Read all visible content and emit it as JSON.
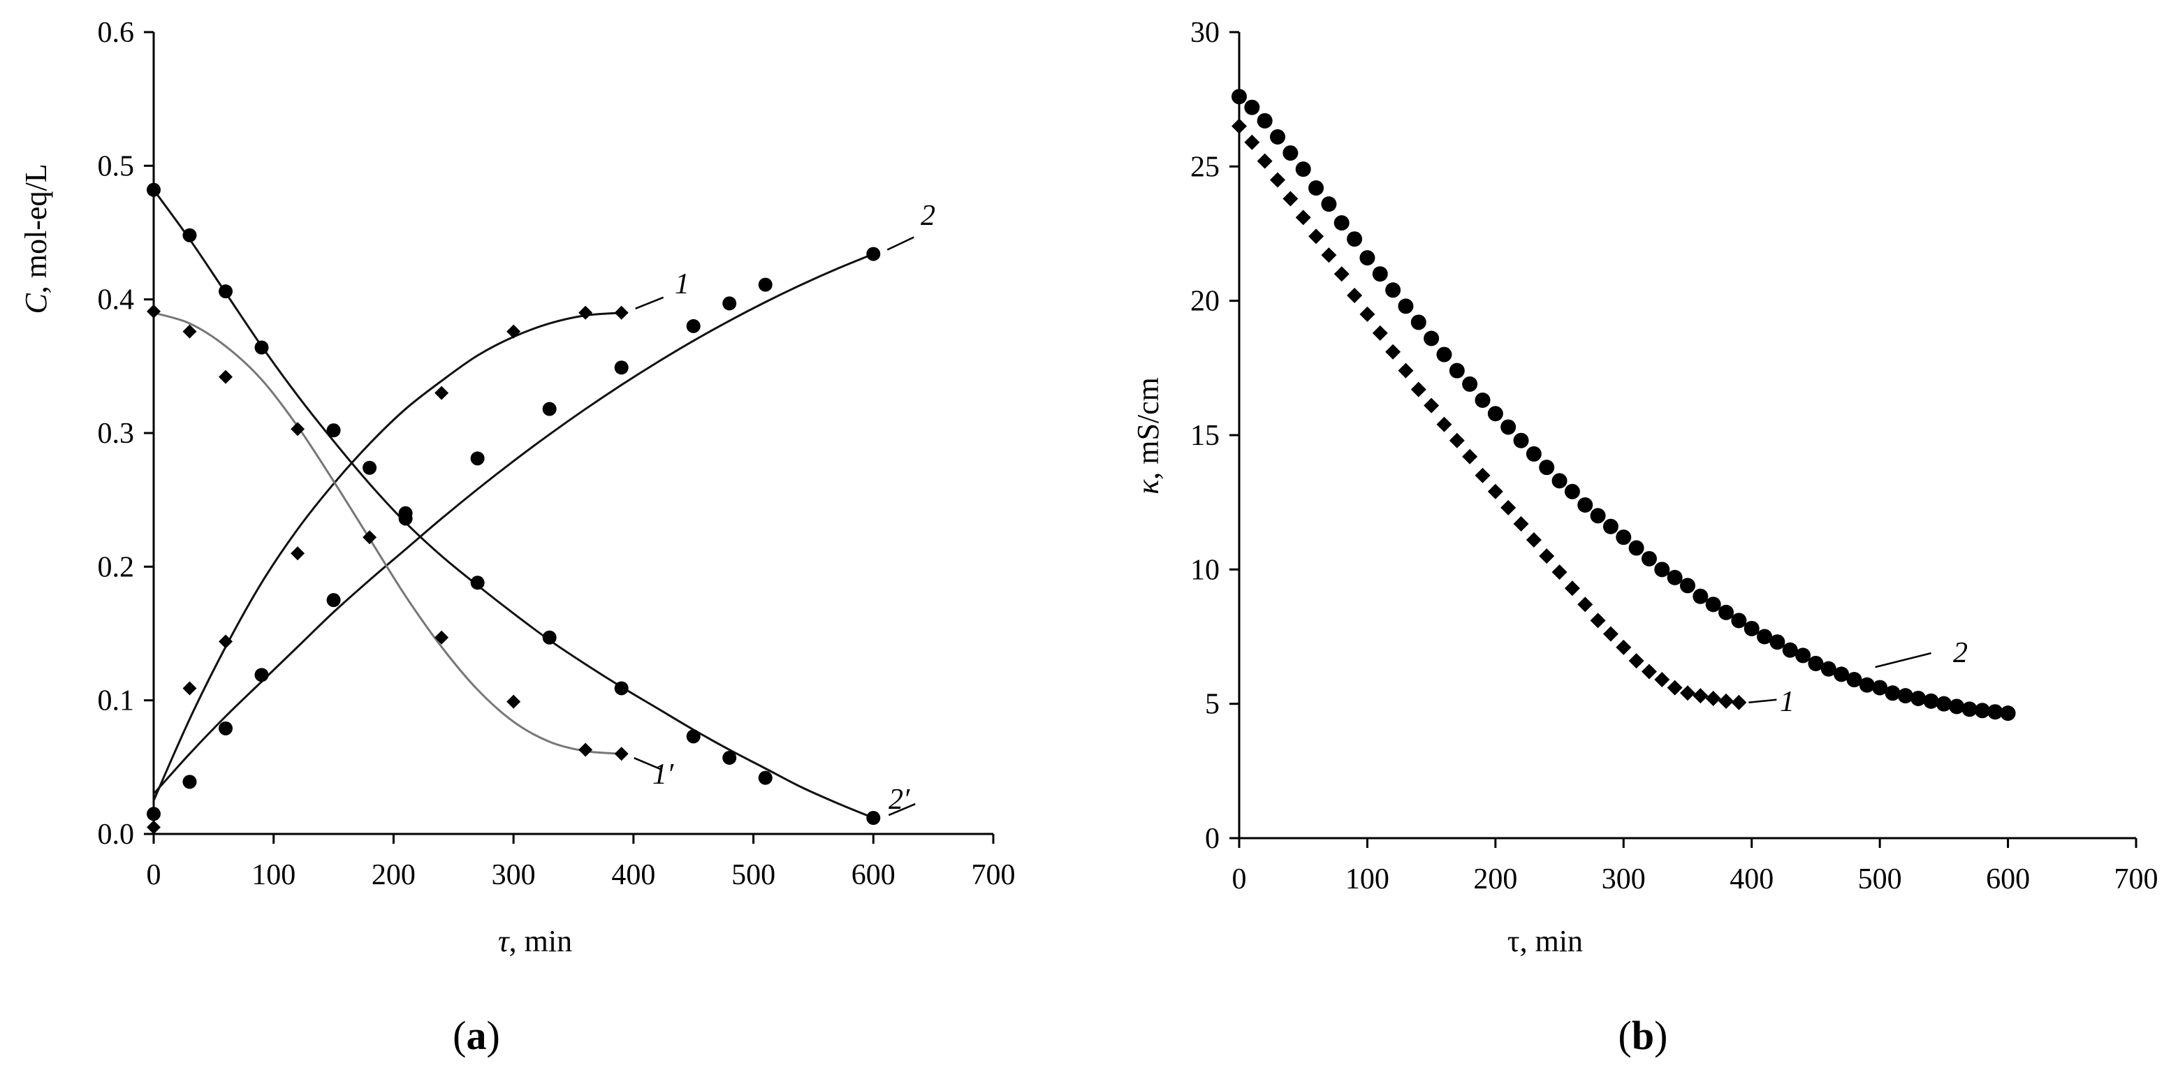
{
  "figure_labels": {
    "a_open": "(",
    "a_letter": "a",
    "a_close": ")",
    "b_open": "(",
    "b_letter": "b",
    "b_close": ")"
  },
  "chart_data": [
    {
      "id": "a",
      "type": "scatter",
      "title": "",
      "xlabel": "τ, min",
      "ylabel": "C, mol-eq/L",
      "xlim": [
        0,
        700
      ],
      "ylim": [
        0,
        0.6
      ],
      "xticks": [
        0,
        100,
        200,
        300,
        400,
        500,
        600,
        700
      ],
      "yticks": [
        0.0,
        0.1,
        0.2,
        0.3,
        0.4,
        0.5,
        0.6
      ],
      "ytick_labels": [
        "0.0",
        "0.1",
        "0.2",
        "0.3",
        "0.4",
        "0.5",
        "0.6"
      ],
      "grid": false,
      "series": [
        {
          "name": "1",
          "label": "1",
          "marker": "diamond",
          "line_color": "#111111",
          "x": [
            0,
            30,
            60,
            120,
            240,
            300,
            360,
            390
          ],
          "y": [
            0.005,
            0.109,
            0.144,
            0.21,
            0.33,
            0.376,
            0.39,
            0.39
          ],
          "fit_x": [
            0,
            30,
            60,
            90,
            120,
            150,
            180,
            210,
            240,
            270,
            300,
            330,
            360,
            390
          ],
          "fit_y": [
            0.025,
            0.086,
            0.14,
            0.188,
            0.228,
            0.262,
            0.292,
            0.318,
            0.339,
            0.358,
            0.372,
            0.382,
            0.388,
            0.39
          ]
        },
        {
          "name": "2",
          "label": "2",
          "marker": "circle",
          "line_color": "#111111",
          "x": [
            0,
            30,
            60,
            90,
            150,
            210,
            270,
            330,
            390,
            450,
            480,
            510,
            600
          ],
          "y": [
            0.015,
            0.039,
            0.079,
            0.119,
            0.175,
            0.236,
            0.281,
            0.318,
            0.349,
            0.38,
            0.397,
            0.411,
            0.434
          ],
          "fit_x": [
            0,
            30,
            60,
            90,
            120,
            150,
            180,
            210,
            240,
            270,
            300,
            330,
            360,
            390,
            420,
            450,
            480,
            510,
            540,
            570,
            600
          ],
          "fit_y": [
            0.03,
            0.06,
            0.088,
            0.114,
            0.14,
            0.166,
            0.19,
            0.213,
            0.236,
            0.258,
            0.279,
            0.299,
            0.318,
            0.336,
            0.353,
            0.369,
            0.384,
            0.398,
            0.411,
            0.423,
            0.434
          ]
        },
        {
          "name": "1'",
          "label": "1′",
          "marker": "diamond",
          "line_color": "#777777",
          "x": [
            0,
            30,
            60,
            120,
            180,
            240,
            300,
            360,
            390
          ],
          "y": [
            0.391,
            0.376,
            0.342,
            0.303,
            0.222,
            0.147,
            0.099,
            0.063,
            0.06
          ],
          "fit_x": [
            0,
            30,
            60,
            90,
            120,
            150,
            180,
            210,
            240,
            270,
            300,
            330,
            360,
            390
          ],
          "fit_y": [
            0.39,
            0.382,
            0.365,
            0.34,
            0.305,
            0.264,
            0.221,
            0.178,
            0.14,
            0.108,
            0.084,
            0.069,
            0.062,
            0.06
          ]
        },
        {
          "name": "2'",
          "label": "2′",
          "marker": "circle",
          "line_color": "#111111",
          "x": [
            0,
            30,
            60,
            90,
            150,
            180,
            210,
            270,
            330,
            390,
            450,
            480,
            510,
            600
          ],
          "y": [
            0.482,
            0.448,
            0.406,
            0.364,
            0.302,
            0.274,
            0.24,
            0.188,
            0.147,
            0.109,
            0.073,
            0.057,
            0.042,
            0.012
          ],
          "fit_x": [
            0,
            30,
            60,
            90,
            120,
            150,
            180,
            210,
            240,
            270,
            300,
            330,
            360,
            390,
            420,
            450,
            480,
            510,
            540,
            570,
            600
          ],
          "fit_y": [
            0.482,
            0.445,
            0.405,
            0.365,
            0.328,
            0.294,
            0.262,
            0.233,
            0.208,
            0.186,
            0.165,
            0.145,
            0.127,
            0.11,
            0.094,
            0.078,
            0.063,
            0.049,
            0.035,
            0.023,
            0.012
          ]
        }
      ]
    },
    {
      "id": "b",
      "type": "scatter",
      "title": "",
      "xlabel": "τ, min",
      "ylabel": "κ, mS/cm",
      "xlim": [
        0,
        700
      ],
      "ylim": [
        0,
        30
      ],
      "xticks": [
        0,
        100,
        200,
        300,
        400,
        500,
        600,
        700
      ],
      "yticks": [
        0,
        5,
        10,
        15,
        20,
        25,
        30
      ],
      "ytick_labels": [
        "0",
        "5",
        "10",
        "15",
        "20",
        "25",
        "30"
      ],
      "grid": false,
      "series": [
        {
          "name": "1",
          "label": "1",
          "marker": "diamond",
          "x": [
            0,
            10,
            20,
            30,
            40,
            50,
            60,
            70,
            80,
            90,
            100,
            110,
            120,
            130,
            140,
            150,
            160,
            170,
            180,
            190,
            200,
            210,
            220,
            230,
            240,
            250,
            260,
            270,
            280,
            290,
            300,
            310,
            320,
            330,
            340,
            350,
            360,
            370,
            380,
            390
          ],
          "y": [
            26.5,
            25.9,
            25.2,
            24.5,
            23.8,
            23.1,
            22.4,
            21.7,
            21.0,
            20.2,
            19.5,
            18.8,
            18.1,
            17.4,
            16.7,
            16.1,
            15.4,
            14.8,
            14.2,
            13.5,
            12.9,
            12.3,
            11.7,
            11.1,
            10.5,
            9.9,
            9.3,
            8.7,
            8.1,
            7.6,
            7.1,
            6.6,
            6.2,
            5.9,
            5.6,
            5.4,
            5.3,
            5.2,
            5.1,
            5.05
          ]
        },
        {
          "name": "2",
          "label": "2",
          "marker": "circle",
          "x": [
            0,
            10,
            20,
            30,
            40,
            50,
            60,
            70,
            80,
            90,
            100,
            110,
            120,
            130,
            140,
            150,
            160,
            170,
            180,
            190,
            200,
            210,
            220,
            230,
            240,
            250,
            260,
            270,
            280,
            290,
            300,
            310,
            320,
            330,
            340,
            350,
            360,
            370,
            380,
            390,
            400,
            410,
            420,
            430,
            440,
            450,
            460,
            470,
            480,
            490,
            500,
            510,
            520,
            530,
            540,
            550,
            560,
            570,
            580,
            590,
            600
          ],
          "y": [
            27.6,
            27.2,
            26.7,
            26.1,
            25.5,
            24.9,
            24.2,
            23.6,
            22.9,
            22.3,
            21.6,
            21.0,
            20.4,
            19.8,
            19.2,
            18.6,
            18.0,
            17.4,
            16.9,
            16.3,
            15.8,
            15.3,
            14.8,
            14.3,
            13.8,
            13.3,
            12.9,
            12.4,
            12.0,
            11.6,
            11.2,
            10.8,
            10.4,
            10.0,
            9.7,
            9.4,
            9.0,
            8.7,
            8.4,
            8.1,
            7.8,
            7.5,
            7.3,
            7.0,
            6.8,
            6.5,
            6.3,
            6.1,
            5.9,
            5.7,
            5.6,
            5.4,
            5.3,
            5.2,
            5.1,
            5.0,
            4.9,
            4.8,
            4.75,
            4.7,
            4.65
          ]
        }
      ]
    }
  ]
}
